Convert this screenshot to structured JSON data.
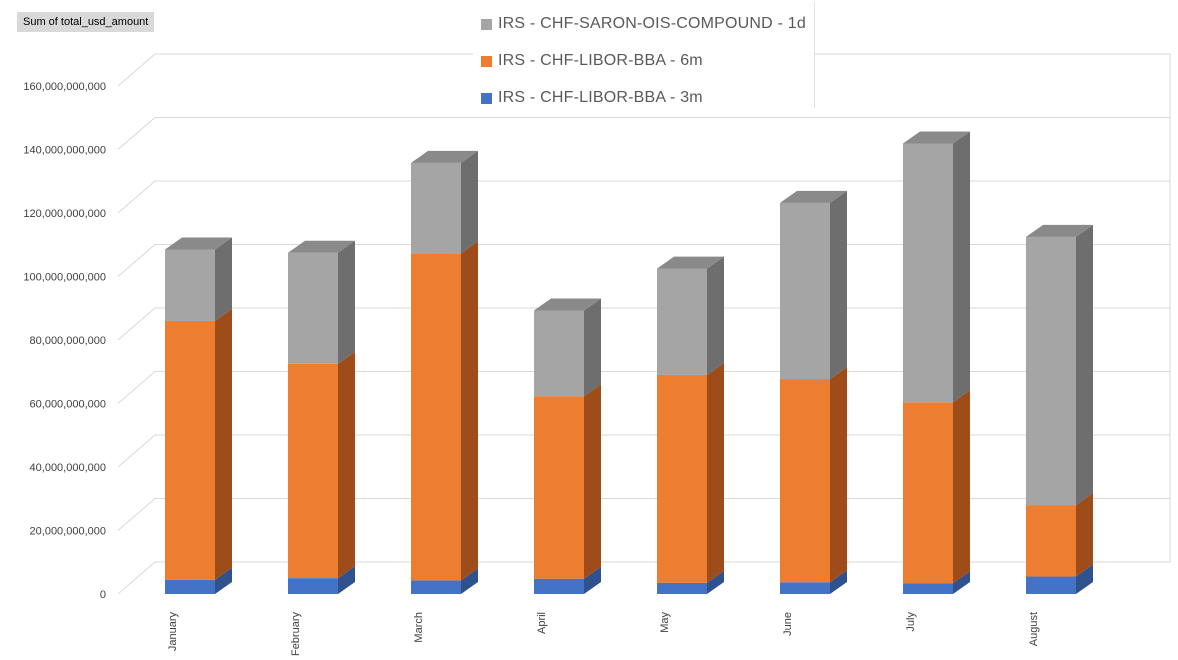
{
  "field_button": {
    "label": "Sum of total_usd_amount"
  },
  "chart_data": {
    "type": "bar",
    "stacked": true,
    "three_d": true,
    "title": "",
    "xlabel": "",
    "ylabel": "",
    "ylim": [
      0,
      160000000000
    ],
    "yticks": [
      0,
      20000000000,
      40000000000,
      60000000000,
      80000000000,
      100000000000,
      120000000000,
      140000000000,
      160000000000
    ],
    "ytick_labels": [
      "0",
      "20,000,000,000",
      "40,000,000,000",
      "60,000,000,000",
      "80,000,000,000",
      "100,000,000,000",
      "120,000,000,000",
      "140,000,000,000",
      "160,000,000,000"
    ],
    "grid": true,
    "legend_position": "top",
    "categories": [
      "January",
      "February",
      "March",
      "April",
      "May",
      "June",
      "July",
      "August"
    ],
    "series": [
      {
        "name": "IRS - CHF-LIBOR-BBA - 3m",
        "color": "#4472c4",
        "side_color": "#2f528f",
        "values": [
          4500000000,
          5000000000,
          4300000000,
          4800000000,
          3500000000,
          3700000000,
          3400000000,
          5500000000
        ]
      },
      {
        "name": "IRS - CHF-LIBOR-BBA - 6m",
        "color": "#ed7d31",
        "side_color": "#9e4d1a",
        "values": [
          81500000000,
          67500000000,
          103000000000,
          57500000000,
          65500000000,
          64000000000,
          57000000000,
          22500000000
        ]
      },
      {
        "name": "IRS - CHF-SARON-OIS-COMPOUND - 1d",
        "color": "#a5a5a5",
        "side_color": "#6e6e6e",
        "values": [
          22500000000,
          35000000000,
          28500000000,
          27000000000,
          33500000000,
          55500000000,
          81500000000,
          84500000000
        ]
      }
    ]
  }
}
